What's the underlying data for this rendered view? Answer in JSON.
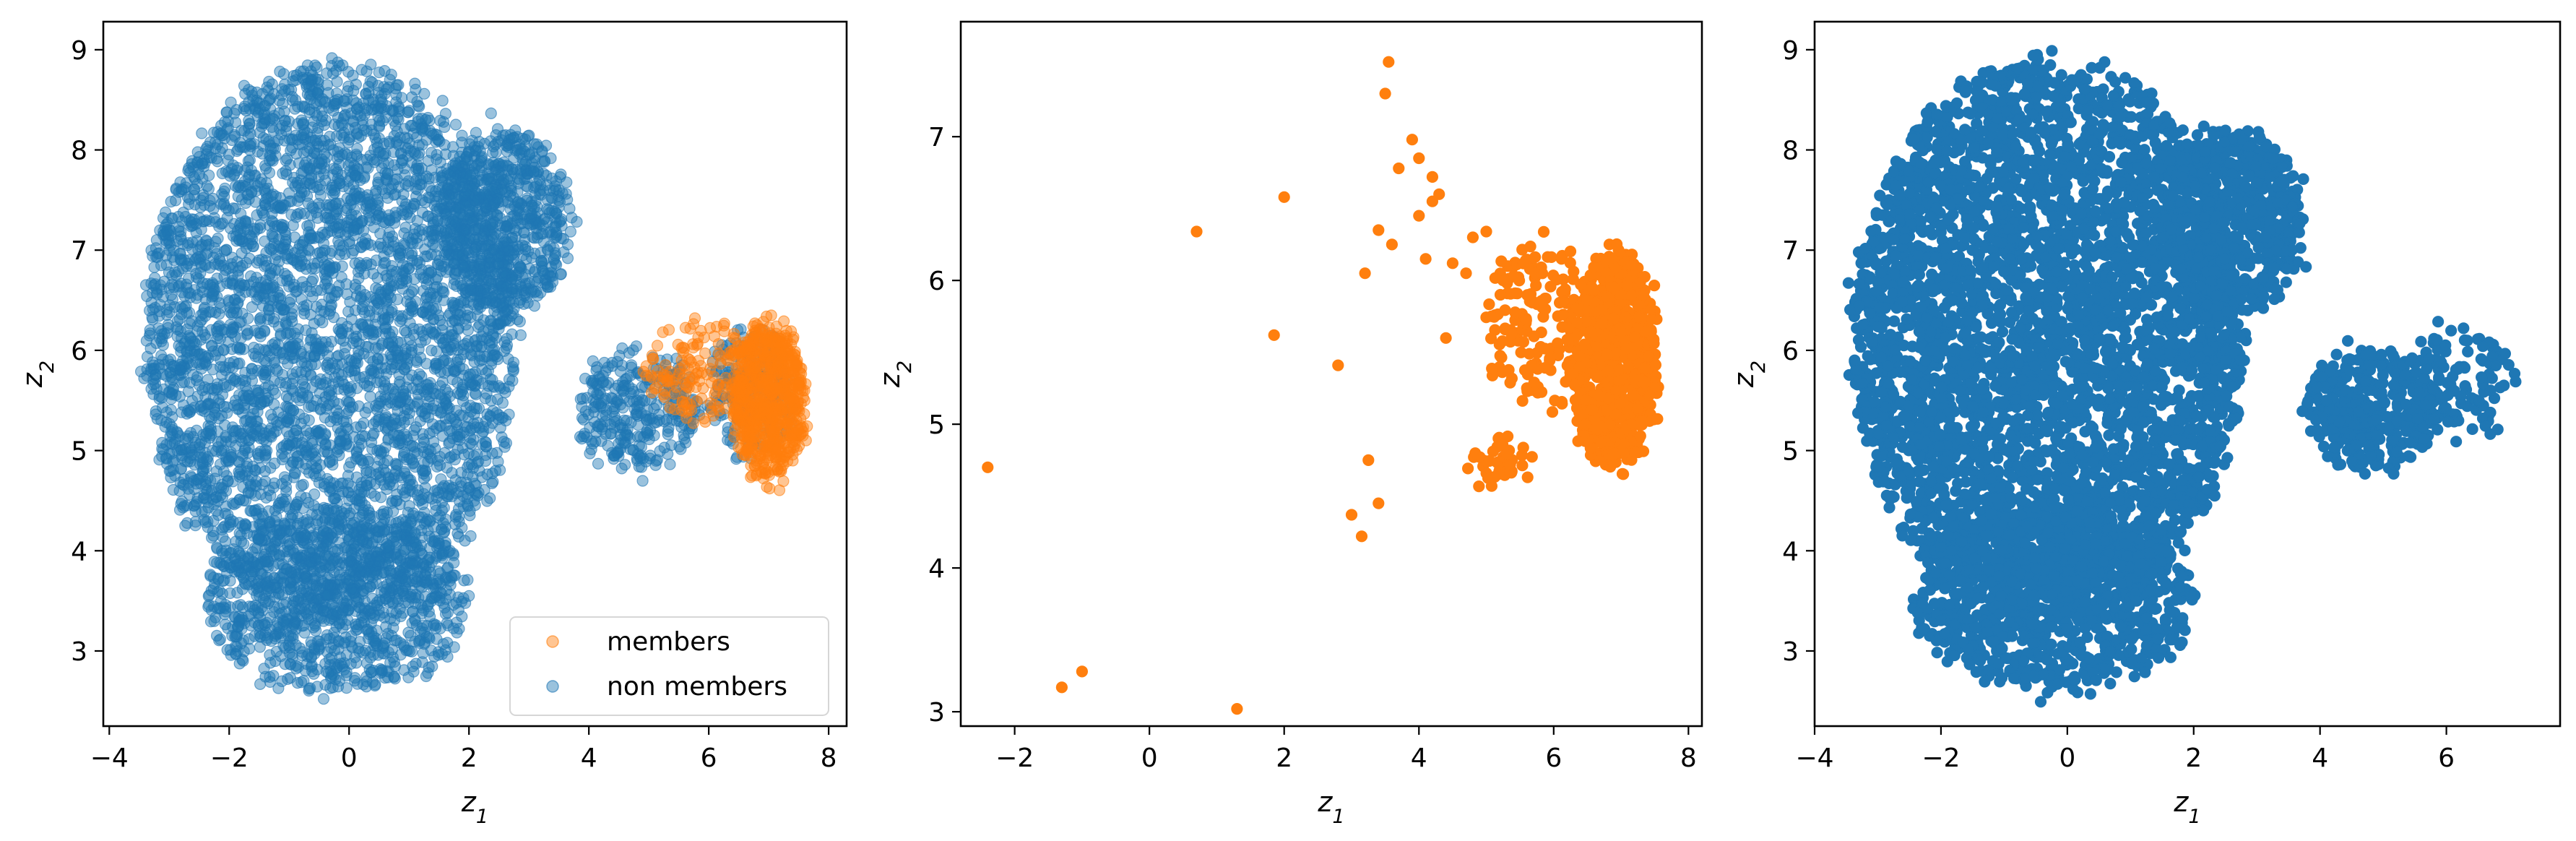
{
  "chart_data": [
    {
      "type": "scatter",
      "title": "",
      "xlabel": "z1",
      "ylabel": "z2",
      "xlim": [
        -4.1,
        8.3
      ],
      "ylim": [
        2.25,
        9.28
      ],
      "xticks": [
        -4,
        -2,
        0,
        2,
        4,
        6,
        8
      ],
      "yticks": [
        3,
        4,
        5,
        6,
        7,
        8,
        9
      ],
      "grid": false,
      "legend": "lower-right",
      "series": [
        {
          "name": "non members",
          "color": "#1f77b4",
          "marker_alpha": 0.45,
          "regions": [
            {
              "kind": "blob",
              "cx": -0.3,
              "cy": 6.1,
              "rx": 3.1,
              "ry": 2.8,
              "count": 4200
            },
            {
              "kind": "blob",
              "cx": -0.2,
              "cy": 3.5,
              "rx": 2.2,
              "ry": 0.9,
              "count": 900
            },
            {
              "kind": "blob",
              "cx": 2.6,
              "cy": 7.3,
              "rx": 1.1,
              "ry": 0.9,
              "count": 700
            },
            {
              "kind": "blob",
              "cx": 4.8,
              "cy": 5.4,
              "rx": 1.0,
              "ry": 0.6,
              "count": 300
            },
            {
              "kind": "blob",
              "cx": 6.7,
              "cy": 5.6,
              "rx": 0.7,
              "ry": 0.6,
              "count": 200
            }
          ]
        },
        {
          "name": "members",
          "color": "#ff7f0e",
          "marker_alpha": 0.45,
          "regions": [
            {
              "kind": "blob",
              "cx": 7.0,
              "cy": 5.5,
              "rx": 0.6,
              "ry": 0.8,
              "count": 700
            },
            {
              "kind": "blob",
              "cx": 5.8,
              "cy": 5.8,
              "rx": 0.9,
              "ry": 0.5,
              "count": 150
            }
          ]
        }
      ]
    },
    {
      "type": "scatter",
      "title": "",
      "xlabel": "z1",
      "ylabel": "z2",
      "xlim": [
        -2.8,
        8.2
      ],
      "ylim": [
        2.9,
        7.8
      ],
      "xticks": [
        -2,
        0,
        2,
        4,
        6,
        8
      ],
      "yticks": [
        3,
        4,
        5,
        6,
        7
      ],
      "grid": false,
      "series": [
        {
          "name": "",
          "color": "#ff7f0e",
          "marker_alpha": 1.0,
          "points": [
            [
              -2.4,
              4.7
            ],
            [
              -1.3,
              3.17
            ],
            [
              -1.0,
              3.28
            ],
            [
              1.3,
              3.02
            ],
            [
              0.7,
              6.34
            ],
            [
              2.0,
              6.58
            ],
            [
              1.85,
              5.62
            ],
            [
              2.8,
              5.41
            ],
            [
              3.2,
              6.05
            ],
            [
              3.25,
              4.75
            ],
            [
              3.0,
              4.37
            ],
            [
              3.15,
              4.22
            ],
            [
              3.4,
              4.45
            ],
            [
              3.55,
              7.52
            ],
            [
              3.5,
              7.3
            ],
            [
              3.9,
              6.98
            ],
            [
              4.0,
              6.85
            ],
            [
              3.7,
              6.78
            ],
            [
              4.2,
              6.72
            ],
            [
              4.3,
              6.6
            ],
            [
              3.4,
              6.35
            ],
            [
              3.6,
              6.25
            ],
            [
              4.1,
              6.15
            ],
            [
              4.5,
              6.12
            ],
            [
              4.0,
              6.45
            ],
            [
              4.8,
              6.3
            ],
            [
              4.4,
              5.6
            ],
            [
              5.0,
              6.34
            ],
            [
              4.7,
              6.05
            ],
            [
              4.2,
              6.55
            ]
          ],
          "regions": [
            {
              "kind": "blob",
              "cx": 6.9,
              "cy": 5.45,
              "rx": 0.6,
              "ry": 0.75,
              "count": 700
            },
            {
              "kind": "blob",
              "cx": 5.8,
              "cy": 5.7,
              "rx": 0.8,
              "ry": 0.55,
              "count": 180
            },
            {
              "kind": "blob",
              "cx": 5.2,
              "cy": 4.75,
              "rx": 0.45,
              "ry": 0.15,
              "count": 40
            }
          ]
        }
      ]
    },
    {
      "type": "scatter",
      "title": "",
      "xlabel": "z1",
      "ylabel": "z2",
      "xlim": [
        -4.0,
        7.8
      ],
      "ylim": [
        2.25,
        9.28
      ],
      "xticks": [
        -4,
        -2,
        0,
        2,
        4,
        6
      ],
      "yticks": [
        3,
        4,
        5,
        6,
        7,
        8,
        9
      ],
      "grid": false,
      "series": [
        {
          "name": "",
          "color": "#1f77b4",
          "marker_alpha": 1.0,
          "regions": [
            {
              "kind": "blob",
              "cx": -0.3,
              "cy": 6.1,
              "rx": 3.1,
              "ry": 2.8,
              "count": 4200
            },
            {
              "kind": "blob",
              "cx": -0.2,
              "cy": 3.5,
              "rx": 2.2,
              "ry": 0.9,
              "count": 900
            },
            {
              "kind": "blob",
              "cx": 2.6,
              "cy": 7.3,
              "rx": 1.1,
              "ry": 0.9,
              "count": 700
            },
            {
              "kind": "blob",
              "cx": 4.8,
              "cy": 5.4,
              "rx": 1.0,
              "ry": 0.6,
              "count": 350
            },
            {
              "kind": "blob",
              "cx": 6.2,
              "cy": 5.7,
              "rx": 0.9,
              "ry": 0.55,
              "count": 120
            }
          ]
        }
      ]
    }
  ],
  "legend": {
    "members_label": "members",
    "non_members_label": "non members"
  },
  "axis_labels": {
    "x_main": "z",
    "x_sub": "1",
    "y_main": "z",
    "y_sub": "2"
  }
}
